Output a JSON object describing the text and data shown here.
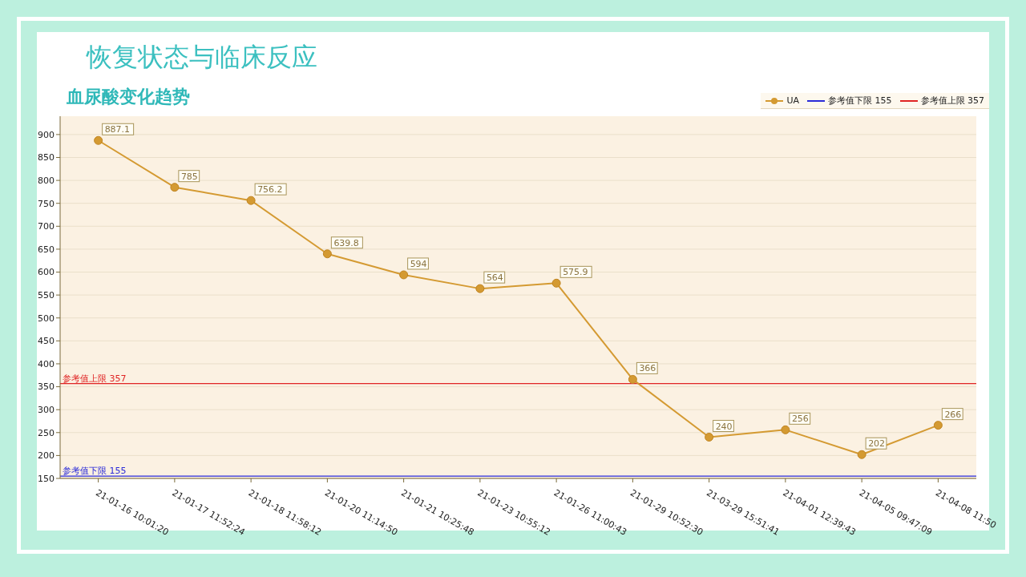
{
  "chart_data": {
    "type": "line",
    "title": "恢复状态与临床反应",
    "subtitle": "血尿酸变化趋势",
    "categories": [
      "21-01-16 10:01:20",
      "21-01-17 11:52:24",
      "21-01-18 11:58:12",
      "21-01-20 11:14:50",
      "21-01-21 10:25:48",
      "21-01-23 10:55:12",
      "21-01-26 11:00:43",
      "21-01-29 10:52:30",
      "21-03-29 15:51:41",
      "21-04-01 12:39:43",
      "21-04-05 09:47:09",
      "21-04-08 11:50"
    ],
    "series": [
      {
        "name": "UA",
        "color": "#d49a32",
        "values": [
          887.1,
          785,
          756.2,
          639.8,
          594,
          564,
          575.9,
          366,
          240,
          256,
          202,
          266
        ]
      }
    ],
    "ylim": [
      150,
      940
    ],
    "yticks": [
      150,
      200,
      250,
      300,
      350,
      400,
      450,
      500,
      550,
      600,
      650,
      700,
      750,
      800,
      850,
      900
    ],
    "grid": "y",
    "legend": "top right",
    "marker": "circle",
    "data_labels": true,
    "ref_lines": [
      {
        "axis": "y",
        "value": 155,
        "label": "参考值下限 155",
        "color": "#2a2ad8"
      },
      {
        "axis": "y",
        "value": 357,
        "label": "参考值上限 357",
        "color": "#e02424"
      }
    ]
  }
}
